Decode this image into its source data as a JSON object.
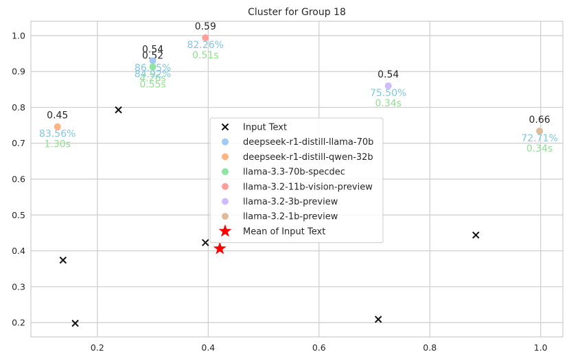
{
  "chart_data": {
    "type": "scatter",
    "title": "Cluster for Group 18",
    "xlabel": "",
    "ylabel": "",
    "xlim": [
      0.08,
      1.04
    ],
    "ylim": [
      0.16,
      1.04
    ],
    "xticks": [
      0.2,
      0.4,
      0.6,
      0.8,
      1.0
    ],
    "xtick_labels": [
      "0.2",
      "0.4",
      "0.6",
      "0.8",
      "1.0"
    ],
    "yticks": [
      0.2,
      0.3,
      0.4,
      0.5,
      0.6,
      0.7,
      0.8,
      0.9,
      1.0
    ],
    "ytick_labels": [
      "0.2",
      "0.3",
      "0.4",
      "0.5",
      "0.6",
      "0.7",
      "0.8",
      "0.9",
      "1.0"
    ],
    "grid": true,
    "legend_position": "center",
    "colors": {
      "input": "#111111",
      "mean": "#ff0000",
      "pct_label": "#7ec8e3",
      "time_label": "#8fe08f"
    },
    "input_text": {
      "name": "Input Text",
      "marker": "x",
      "points": [
        {
          "x": 0.238,
          "y": 0.793
        },
        {
          "x": 0.138,
          "y": 0.374
        },
        {
          "x": 0.16,
          "y": 0.198
        },
        {
          "x": 0.395,
          "y": 0.423
        },
        {
          "x": 0.883,
          "y": 0.444
        },
        {
          "x": 0.707,
          "y": 0.209
        }
      ]
    },
    "mean": {
      "name": "Mean of Input Text",
      "x": 0.421,
      "y": 0.406
    },
    "models": [
      {
        "name": "deepseek-r1-distill-llama-70b",
        "color": "#a1c9f4",
        "x": 0.3,
        "y": 0.93,
        "score": "0.54",
        "pct": "86.45%",
        "time": "4.26s"
      },
      {
        "name": "deepseek-r1-distill-qwen-32b",
        "color": "#ffb482",
        "x": 0.128,
        "y": 0.746,
        "score": "0.45",
        "pct": "83.56%",
        "time": "1.30s"
      },
      {
        "name": "llama-3.3-70b-specdec",
        "color": "#8de5a1",
        "x": 0.3,
        "y": 0.913,
        "score": "0.52",
        "pct": "84.92%",
        "time": "0.55s"
      },
      {
        "name": "llama-3.2-11b-vision-preview",
        "color": "#ff9f9b",
        "x": 0.395,
        "y": 0.994,
        "score": "0.59",
        "pct": "82.26%",
        "time": "0.51s"
      },
      {
        "name": "llama-3.2-3b-preview",
        "color": "#d0bbff",
        "x": 0.725,
        "y": 0.86,
        "score": "0.54",
        "pct": "75.50%",
        "time": "0.34s"
      },
      {
        "name": "llama-3.2-1b-preview",
        "color": "#debb9b",
        "x": 0.998,
        "y": 0.734,
        "score": "0.66",
        "pct": "72.71%",
        "time": "0.34s"
      }
    ]
  }
}
